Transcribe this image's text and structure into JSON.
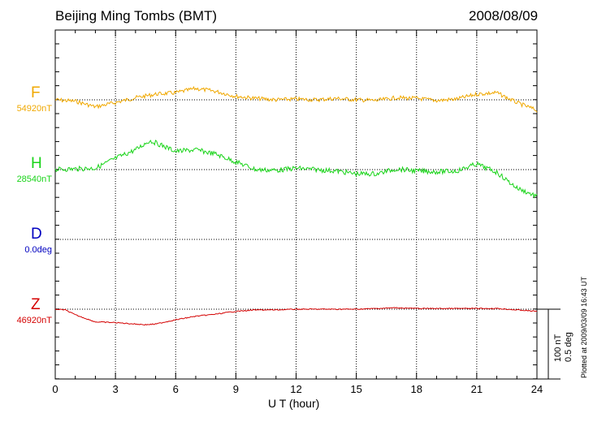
{
  "header": {
    "title": "Beijing Ming Tombs (BMT)",
    "date": "2008/08/09"
  },
  "colors": {
    "F": "#f0a800",
    "H": "#19d419",
    "D": "#0000c0",
    "Z": "#d40000"
  },
  "scale": {
    "nT_label": "100 nT",
    "deg_label": "0.5 deg"
  },
  "footer": {
    "plotted": "Plotted at 2009/03/09 16:43 UT"
  },
  "chart_data": {
    "type": "line",
    "title": "Beijing Ming Tombs (BMT)",
    "xlabel": "U T (hour)",
    "ylabel": "",
    "xlim": [
      0,
      24
    ],
    "xticks": [
      "0",
      "3",
      "6",
      "9",
      "12",
      "15",
      "18",
      "21",
      "24"
    ],
    "grid": true,
    "scale_nT_per_bar": 100,
    "series": [
      {
        "name": "F",
        "baseline_label": "54920nT",
        "unit": "nT",
        "x": [
          0,
          1,
          2,
          3,
          4,
          5,
          6,
          7,
          8,
          9,
          10,
          11,
          12,
          13,
          14,
          15,
          16,
          17,
          18,
          19,
          20,
          21,
          22,
          23,
          24
        ],
        "values": [
          54920,
          54918,
          54910,
          54916,
          54923,
          54928,
          54930,
          54936,
          54932,
          54925,
          54922,
          54920,
          54921,
          54920,
          54922,
          54920,
          54919,
          54923,
          54922,
          54919,
          54921,
          54928,
          54930,
          54916,
          54905
        ]
      },
      {
        "name": "H",
        "baseline_label": "28540nT",
        "unit": "nT",
        "x": [
          0,
          1,
          2,
          3,
          4,
          4.7,
          5,
          6,
          7,
          8,
          9,
          10,
          11,
          12,
          13,
          14,
          15,
          16,
          17,
          18,
          19,
          20,
          21,
          22,
          23,
          24
        ],
        "values": [
          28540,
          28541,
          28542,
          28556,
          28568,
          28581,
          28578,
          28566,
          28568,
          28562,
          28551,
          28540,
          28539,
          28542,
          28540,
          28538,
          28534,
          28534,
          28541,
          28538,
          28537,
          28538,
          28548,
          28536,
          28514,
          28502
        ]
      },
      {
        "name": "D",
        "baseline_label": "0.0deg",
        "unit": "deg",
        "x": [],
        "values": []
      },
      {
        "name": "Z",
        "baseline_label": "46920nT",
        "unit": "nT",
        "x": [
          0,
          0.5,
          1,
          2,
          3,
          4,
          4.5,
          5,
          6,
          7,
          8,
          9,
          10,
          11,
          12,
          13,
          14,
          15,
          16,
          17,
          18,
          19,
          20,
          21,
          22,
          23,
          24
        ],
        "values": [
          46920,
          46919,
          46912,
          46902,
          46901,
          46899,
          46898,
          46899,
          46905,
          46910,
          46913,
          46917,
          46919,
          46919,
          46920,
          46920,
          46920,
          46920,
          46921,
          46922,
          46921,
          46921,
          46921,
          46921,
          46921,
          46919,
          46917
        ]
      }
    ]
  }
}
